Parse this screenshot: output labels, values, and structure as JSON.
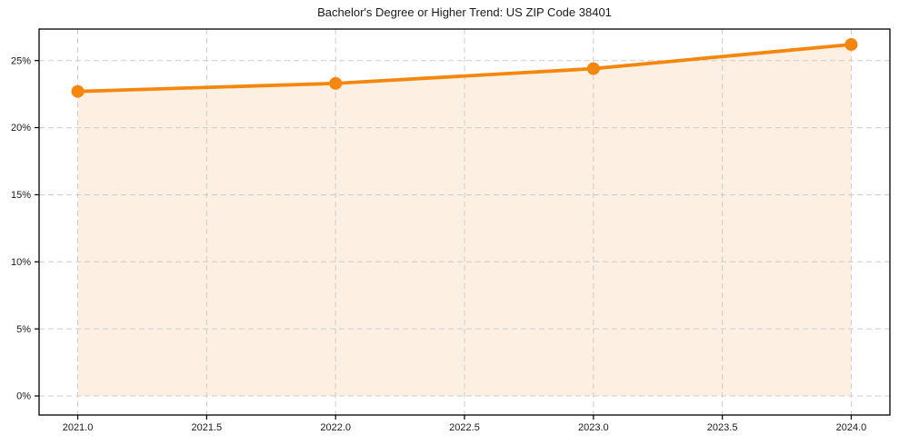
{
  "page": {
    "background": "#ffffff"
  },
  "chart_data": {
    "type": "area",
    "title": "Bachelor's Degree or Higher Trend: US ZIP Code 38401",
    "x": [
      2021,
      2022,
      2023,
      2024
    ],
    "values": [
      22.7,
      23.3,
      24.4,
      26.2
    ],
    "baseline": 0,
    "xlabel": "",
    "ylabel": "",
    "xlim": [
      2020.85,
      2024.15
    ],
    "ylim": [
      -1.42,
      27.35
    ],
    "x_ticks": [
      2021.0,
      2021.5,
      2022.0,
      2022.5,
      2023.0,
      2023.5,
      2024.0
    ],
    "x_tick_labels": [
      "2021.0",
      "2021.5",
      "2022.0",
      "2022.5",
      "2023.0",
      "2023.5",
      "2024.0"
    ],
    "y_ticks": [
      0,
      5,
      10,
      15,
      20,
      25
    ],
    "y_tick_labels": [
      "0%",
      "5%",
      "10%",
      "15%",
      "20%",
      "25%"
    ],
    "grid": true,
    "legend": false,
    "colors": {
      "line": "#f5870e",
      "marker": "#f5870e",
      "fill": "#fdf0e3",
      "grid": "#cccccc",
      "axis": "#000000",
      "text": "#1a1a1a",
      "background": "#ffffff"
    }
  }
}
